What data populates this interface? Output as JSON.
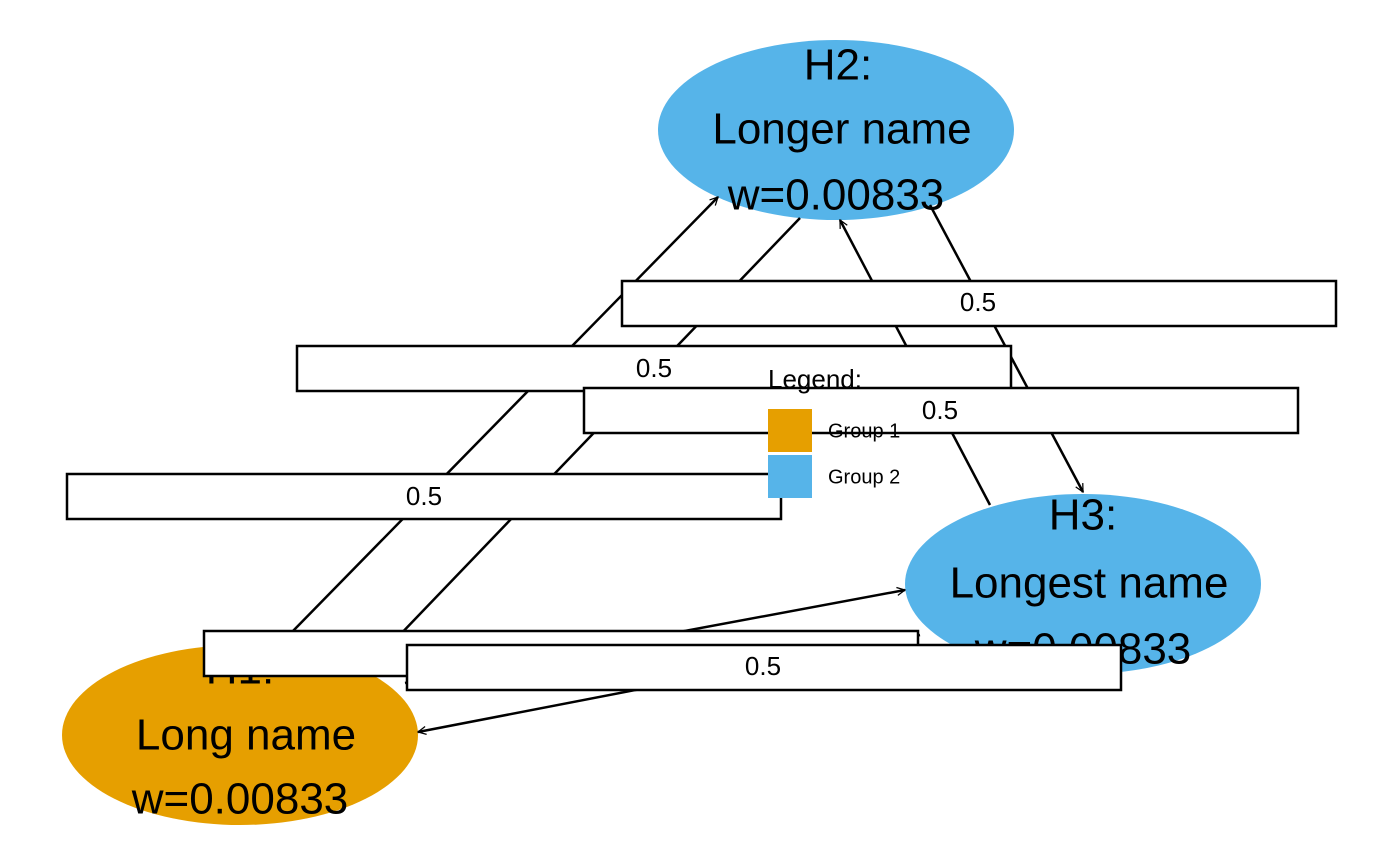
{
  "nodes": [
    {
      "title": "H1:",
      "name": "Long name",
      "weight": "w=0.00833"
    },
    {
      "title": "H2:",
      "name": "Longer name",
      "weight": "w=0.00833"
    },
    {
      "title": "H3:",
      "name": "Longest name",
      "weight": "w=0.00833"
    }
  ],
  "edges": [
    {
      "label": "0.5"
    },
    {
      "label": "0.5"
    },
    {
      "label": "0.5"
    },
    {
      "label": "0.5"
    },
    {
      "label": "0.5"
    },
    {
      "label": "0.5"
    }
  ],
  "legend": {
    "title": "Legend:",
    "items": [
      "Group 1",
      "Group 2"
    ]
  }
}
